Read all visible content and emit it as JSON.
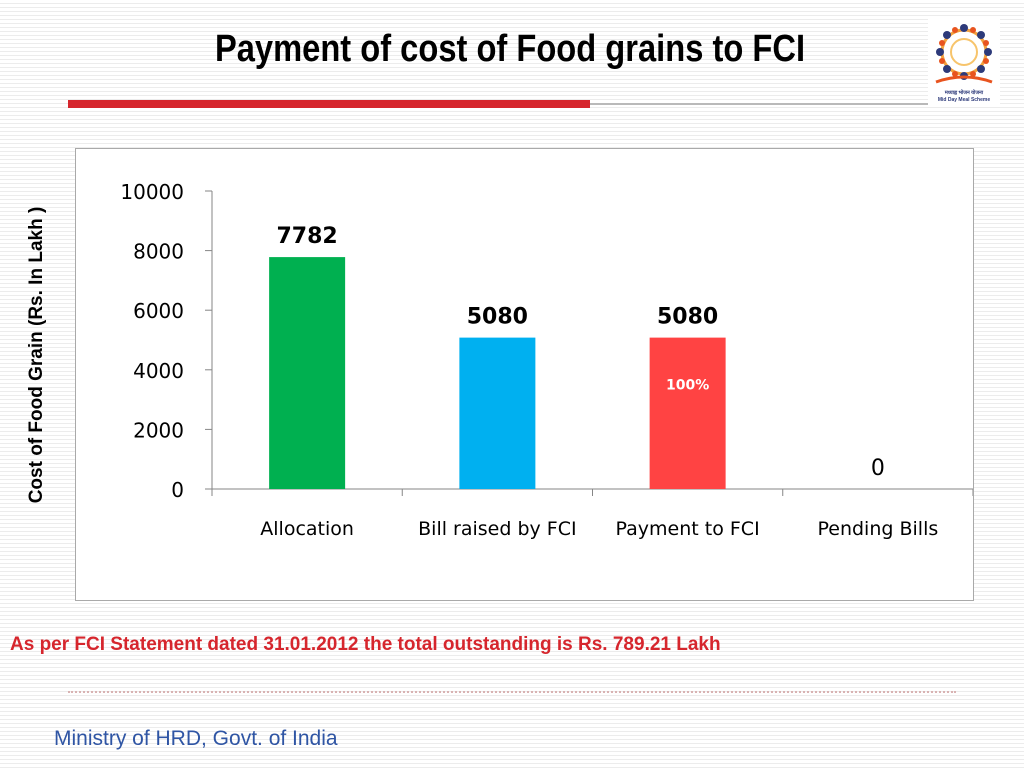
{
  "slide": {
    "title": "Payment of cost of Food grains to FCI",
    "note": "As per FCI Statement dated 31.01.2012 the total outstanding is Rs. 789.21 Lakh",
    "footer": "Ministry of HRD, Govt. of India"
  },
  "logo": {
    "hindi_text": "मध्याह्न भोजन योजना",
    "english_text": "Mid Day Meal Scheme"
  },
  "chart_data": {
    "type": "bar",
    "categories": [
      "Allocation",
      "Bill raised by FCI",
      "Payment to FCI",
      "Pending Bills"
    ],
    "values": [
      7782,
      5080,
      5080,
      0
    ],
    "data_labels": [
      "7782",
      "5080",
      "5080",
      "0"
    ],
    "bar_colors": [
      "#00b050",
      "#00b0f0",
      "#ff4343",
      "#00b050"
    ],
    "ylabel": "Cost of Food Grain (Rs. In Lakh )",
    "xlabel": "",
    "ylim": [
      0,
      10000
    ],
    "yticks": [
      0,
      2000,
      4000,
      6000,
      8000,
      10000
    ],
    "annotations": [
      {
        "category": "Payment to FCI",
        "text": "100%",
        "color": "#ffffff"
      }
    ],
    "grid": false,
    "legend": "none"
  }
}
